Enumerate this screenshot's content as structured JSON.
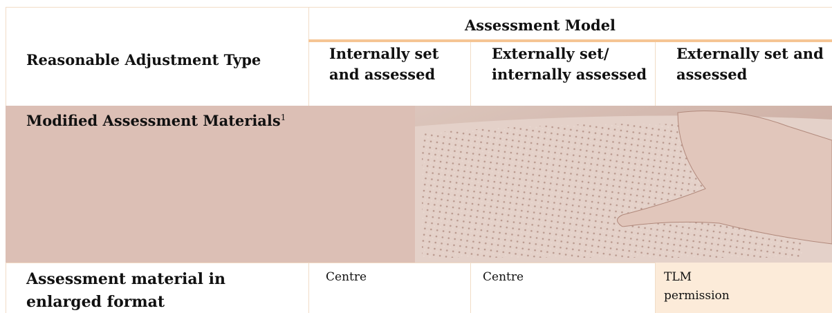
{
  "header": {
    "type_column": "Reasonable Adjustment Type",
    "group": "Assessment Model",
    "columns": [
      "Internally set and assessed",
      "Externally set/ internally assessed",
      "Externally set and assessed"
    ]
  },
  "section": {
    "title": "Modified Assessment Materials",
    "footnote": "1"
  },
  "rows": [
    {
      "label": "Assessment material in enlarged format",
      "cells": [
        "Centre",
        "Centre",
        "TLM permission"
      ]
    }
  ]
}
